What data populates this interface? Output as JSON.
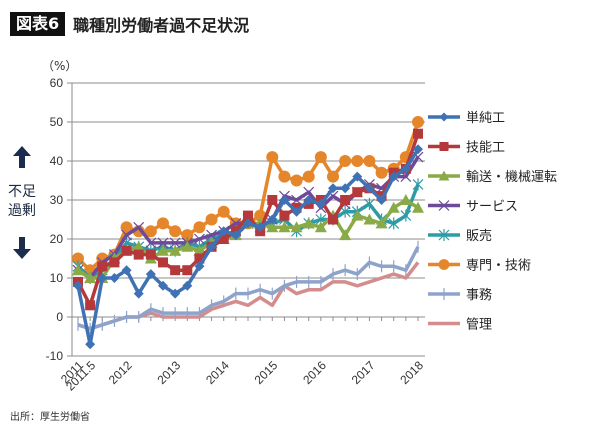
{
  "header": {
    "badge": "図表6",
    "title": "職種別労働者過不足状況"
  },
  "unit": "（%）",
  "side_label": {
    "line1": "不足",
    "line2": "過剰",
    "arrow_up": "arrow-up",
    "arrow_down": "arrow-down",
    "arrow_color": "#1b2c4e"
  },
  "source": "出所：厚生労働省",
  "chart_data": {
    "type": "line",
    "title": "職種別労働者過不足状況",
    "xlabel": "",
    "ylabel": "（%）",
    "ylim": [
      -10,
      60
    ],
    "yticks": [
      -10,
      0,
      10,
      20,
      30,
      40,
      50,
      60
    ],
    "grid": true,
    "legend_position": "right",
    "x_tick_labels": [
      {
        "index": 0,
        "label": "2011"
      },
      {
        "index": 1,
        "label": "2011.5"
      },
      {
        "index": 4,
        "label": "2012"
      },
      {
        "index": 8,
        "label": "2013"
      },
      {
        "index": 12,
        "label": "2014"
      },
      {
        "index": 16,
        "label": "2015"
      },
      {
        "index": 20,
        "label": "2016"
      },
      {
        "index": 24,
        "label": "2017"
      },
      {
        "index": 28,
        "label": "2018"
      }
    ],
    "n_points": 29,
    "series": [
      {
        "name": "単純工",
        "color": "#3f72b5",
        "marker": "diamond",
        "values": [
          8,
          -7,
          10,
          10,
          12,
          6,
          11,
          8,
          6,
          8,
          13,
          18,
          22,
          21,
          24,
          23,
          25,
          30,
          27,
          30,
          29,
          33,
          33,
          36,
          33,
          30,
          36,
          38,
          43
        ]
      },
      {
        "name": "技能工",
        "color": "#b5393a",
        "marker": "square",
        "values": [
          9,
          3,
          13,
          14,
          17,
          16,
          16,
          14,
          12,
          12,
          15,
          18,
          20,
          22,
          26,
          22,
          30,
          26,
          28,
          29,
          30,
          25,
          30,
          32,
          33,
          31,
          37,
          38,
          47
        ]
      },
      {
        "name": "輸送・機械運転",
        "color": "#8aaa47",
        "marker": "triangle",
        "values": [
          12,
          10,
          10,
          15,
          17,
          18,
          15,
          17,
          17,
          18,
          17,
          19,
          20,
          21,
          24,
          24,
          23,
          23,
          23,
          24,
          23,
          26,
          21,
          26,
          25,
          24,
          28,
          30,
          28
        ]
      },
      {
        "name": "サービス",
        "color": "#6d4a9a",
        "marker": "x",
        "values": [
          12,
          10,
          14,
          16,
          21,
          23,
          19,
          19,
          19,
          19,
          20,
          21,
          22,
          24,
          24,
          23,
          25,
          31,
          30,
          32,
          28,
          31,
          29,
          32,
          34,
          33,
          36,
          36,
          41
        ]
      },
      {
        "name": "販売",
        "color": "#2e9ba5",
        "marker": "asterisk",
        "values": [
          13,
          10,
          12,
          15,
          19,
          18,
          17,
          18,
          17,
          19,
          18,
          20,
          21,
          22,
          25,
          23,
          24,
          25,
          22,
          24,
          25,
          25,
          27,
          27,
          29,
          25,
          24,
          26,
          34
        ]
      },
      {
        "name": "専門・技術",
        "color": "#e5862b",
        "marker": "circle",
        "values": [
          15,
          12,
          15,
          16,
          23,
          22,
          22,
          24,
          22,
          21,
          23,
          25,
          27,
          24,
          24,
          26,
          41,
          36,
          35,
          36,
          41,
          36,
          40,
          40,
          40,
          37,
          38,
          41,
          50
        ]
      },
      {
        "name": "事務",
        "color": "#8ea3ca",
        "marker": "plus",
        "values": [
          -2,
          -3,
          -2,
          -1,
          0,
          0,
          2,
          1,
          1,
          1,
          1,
          3,
          4,
          6,
          6,
          7,
          6,
          8,
          9,
          9,
          9,
          11,
          12,
          11,
          14,
          13,
          13,
          12,
          18
        ]
      },
      {
        "name": "管理",
        "color": "#d48c8c",
        "marker": "none",
        "values": [
          -2,
          -3,
          -2,
          -1,
          0,
          0,
          1,
          0,
          0,
          0,
          0,
          2,
          3,
          4,
          3,
          5,
          3,
          8,
          6,
          7,
          7,
          9,
          9,
          8,
          9,
          10,
          11,
          10,
          14
        ]
      }
    ]
  }
}
